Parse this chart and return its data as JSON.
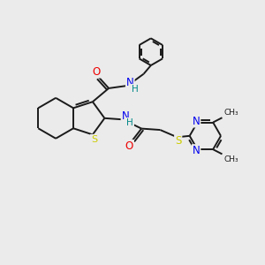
{
  "background_color": "#ebebeb",
  "bond_color": "#1a1a1a",
  "atom_colors": {
    "S": "#cccc00",
    "N": "#0000ee",
    "O": "#ee0000",
    "H": "#008888",
    "C": "#1a1a1a"
  },
  "figsize": [
    3.0,
    3.0
  ],
  "dpi": 100,
  "xlim": [
    0,
    10
  ],
  "ylim": [
    0,
    10
  ]
}
